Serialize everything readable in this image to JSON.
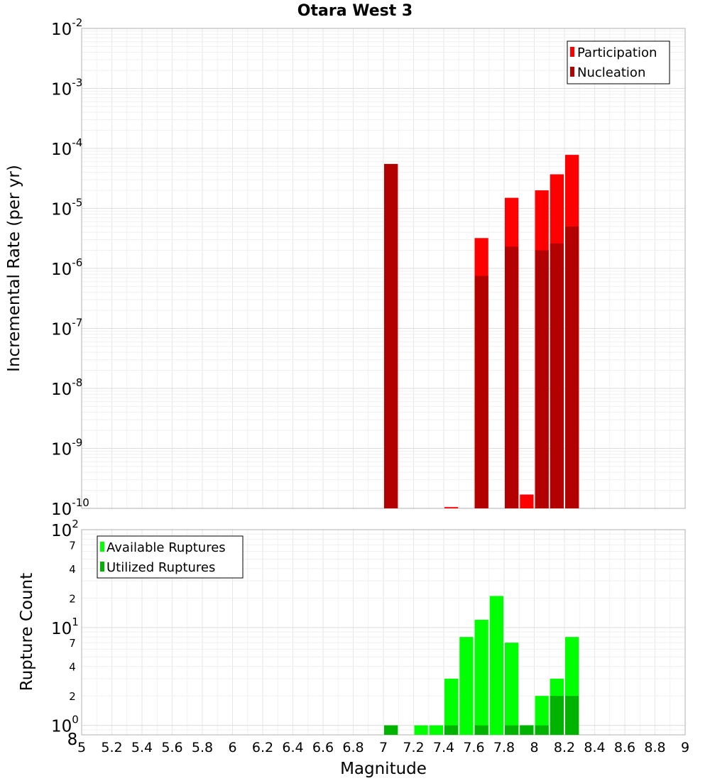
{
  "chart_data": [
    {
      "type": "bar",
      "title": "Otara West 3",
      "xlabel": "",
      "ylabel": "Incremental Rate (per yr)",
      "yscale": "log",
      "ylim": [
        1e-10,
        0.01
      ],
      "xlim": [
        5,
        9
      ],
      "bar_width": 0.1,
      "y_major_ticks": [
        {
          "base": "10",
          "exp": "-10",
          "value": 1e-10
        },
        {
          "base": "10",
          "exp": "-9",
          "value": 1e-09
        },
        {
          "base": "10",
          "exp": "-8",
          "value": 1e-08
        },
        {
          "base": "10",
          "exp": "-7",
          "value": 1e-07
        },
        {
          "base": "10",
          "exp": "-6",
          "value": 1e-06
        },
        {
          "base": "10",
          "exp": "-5",
          "value": 1e-05
        },
        {
          "base": "10",
          "exp": "-4",
          "value": 0.0001
        },
        {
          "base": "10",
          "exp": "-3",
          "value": 0.001
        },
        {
          "base": "10",
          "exp": "-2",
          "value": 0.01
        }
      ],
      "legend": {
        "position": "top-right",
        "entries": [
          {
            "label": "Participation",
            "color": "#ff0000"
          },
          {
            "label": "Nucleation",
            "color": "#b30000"
          }
        ]
      },
      "series": [
        {
          "name": "Participation",
          "color": "#ff0000",
          "x": [
            7.05,
            7.45,
            7.65,
            7.85,
            7.95,
            8.05,
            8.15,
            8.25
          ],
          "values": [
            5.5e-05,
            1.05e-10,
            3.2e-06,
            1.5e-05,
            1.7e-10,
            2e-05,
            3.7e-05,
            7.8e-05
          ]
        },
        {
          "name": "Nucleation",
          "color": "#b30000",
          "x": [
            7.05,
            7.65,
            7.85,
            8.05,
            8.15,
            8.25
          ],
          "values": [
            5.5e-05,
            7.5e-07,
            2.3e-06,
            2e-06,
            2.6e-06,
            5e-06
          ]
        }
      ]
    },
    {
      "type": "bar",
      "title": "",
      "xlabel": "Magnitude",
      "ylabel": "Rupture Count",
      "yscale": "log",
      "ylim": [
        0.8,
        100
      ],
      "xlim": [
        5,
        9
      ],
      "bar_width": 0.1,
      "x_ticks": [
        "5",
        "5.2",
        "5.4",
        "5.6",
        "5.8",
        "6",
        "6.2",
        "6.4",
        "6.6",
        "6.8",
        "7",
        "7.2",
        "7.4",
        "7.6",
        "7.8",
        "8",
        "8.2",
        "8.4",
        "8.6",
        "8.8",
        "9"
      ],
      "y_major_ticks": [
        {
          "base": "10",
          "exp": "0",
          "value": 1
        },
        {
          "base": "10",
          "exp": "1",
          "value": 10
        },
        {
          "base": "10",
          "exp": "2",
          "value": 100
        }
      ],
      "y_minor_labels": [
        {
          "label": "8",
          "value": 0.8
        },
        {
          "label": "2",
          "value": 2
        },
        {
          "label": "4",
          "value": 4
        },
        {
          "label": "7",
          "value": 7
        },
        {
          "label": "2",
          "value": 20
        },
        {
          "label": "4",
          "value": 40
        },
        {
          "label": "7",
          "value": 70
        }
      ],
      "legend": {
        "position": "top-left",
        "entries": [
          {
            "label": "Available Ruptures",
            "color": "#00ff00"
          },
          {
            "label": "Utilized Ruptures",
            "color": "#00b300"
          }
        ]
      },
      "series": [
        {
          "name": "Available Ruptures",
          "color": "#00ff00",
          "x": [
            7.05,
            7.25,
            7.35,
            7.45,
            7.55,
            7.65,
            7.75,
            7.85,
            7.95,
            8.05,
            8.15,
            8.25
          ],
          "values": [
            1,
            1,
            1,
            3,
            8,
            12,
            21,
            7,
            1,
            2,
            3,
            8
          ]
        },
        {
          "name": "Utilized Ruptures",
          "color": "#00b300",
          "x": [
            7.05,
            7.45,
            7.65,
            7.85,
            7.95,
            8.05,
            8.15,
            8.25
          ],
          "values": [
            1,
            1,
            1,
            1,
            1,
            1,
            2,
            2
          ]
        }
      ]
    }
  ]
}
